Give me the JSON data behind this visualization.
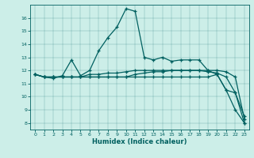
{
  "xlabel": "Humidex (Indice chaleur)",
  "bg_color": "#cceee8",
  "line_color": "#006060",
  "xlim": [
    -0.5,
    23.5
  ],
  "ylim": [
    7.5,
    17.0
  ],
  "yticks": [
    8,
    9,
    10,
    11,
    12,
    13,
    14,
    15,
    16
  ],
  "xticks": [
    0,
    1,
    2,
    3,
    4,
    5,
    6,
    7,
    8,
    9,
    10,
    11,
    12,
    13,
    14,
    15,
    16,
    17,
    18,
    19,
    20,
    21,
    22,
    23
  ],
  "series": {
    "line1_y": [
      11.7,
      11.5,
      11.4,
      11.6,
      12.8,
      11.6,
      12.0,
      13.5,
      14.5,
      15.3,
      16.7,
      16.5,
      13.0,
      12.8,
      13.0,
      12.7,
      12.8,
      12.8,
      12.8,
      12.0,
      11.7,
      10.5,
      10.3,
      8.0
    ],
    "line2_y": [
      11.7,
      11.5,
      11.5,
      11.5,
      11.5,
      11.5,
      11.7,
      11.7,
      11.8,
      11.8,
      11.9,
      12.0,
      12.0,
      12.0,
      12.0,
      12.0,
      12.0,
      12.0,
      12.0,
      12.0,
      12.0,
      11.9,
      11.5,
      8.3
    ],
    "line3_y": [
      11.7,
      11.5,
      11.5,
      11.5,
      11.5,
      11.5,
      11.5,
      11.5,
      11.5,
      11.5,
      11.5,
      11.7,
      11.8,
      11.9,
      11.9,
      12.0,
      12.0,
      12.0,
      12.0,
      11.9,
      11.8,
      11.5,
      10.3,
      8.5
    ],
    "line4_y": [
      11.7,
      11.5,
      11.5,
      11.5,
      11.5,
      11.5,
      11.5,
      11.5,
      11.5,
      11.5,
      11.5,
      11.5,
      11.5,
      11.5,
      11.5,
      11.5,
      11.5,
      11.5,
      11.5,
      11.5,
      11.7,
      10.5,
      9.0,
      8.0
    ]
  }
}
